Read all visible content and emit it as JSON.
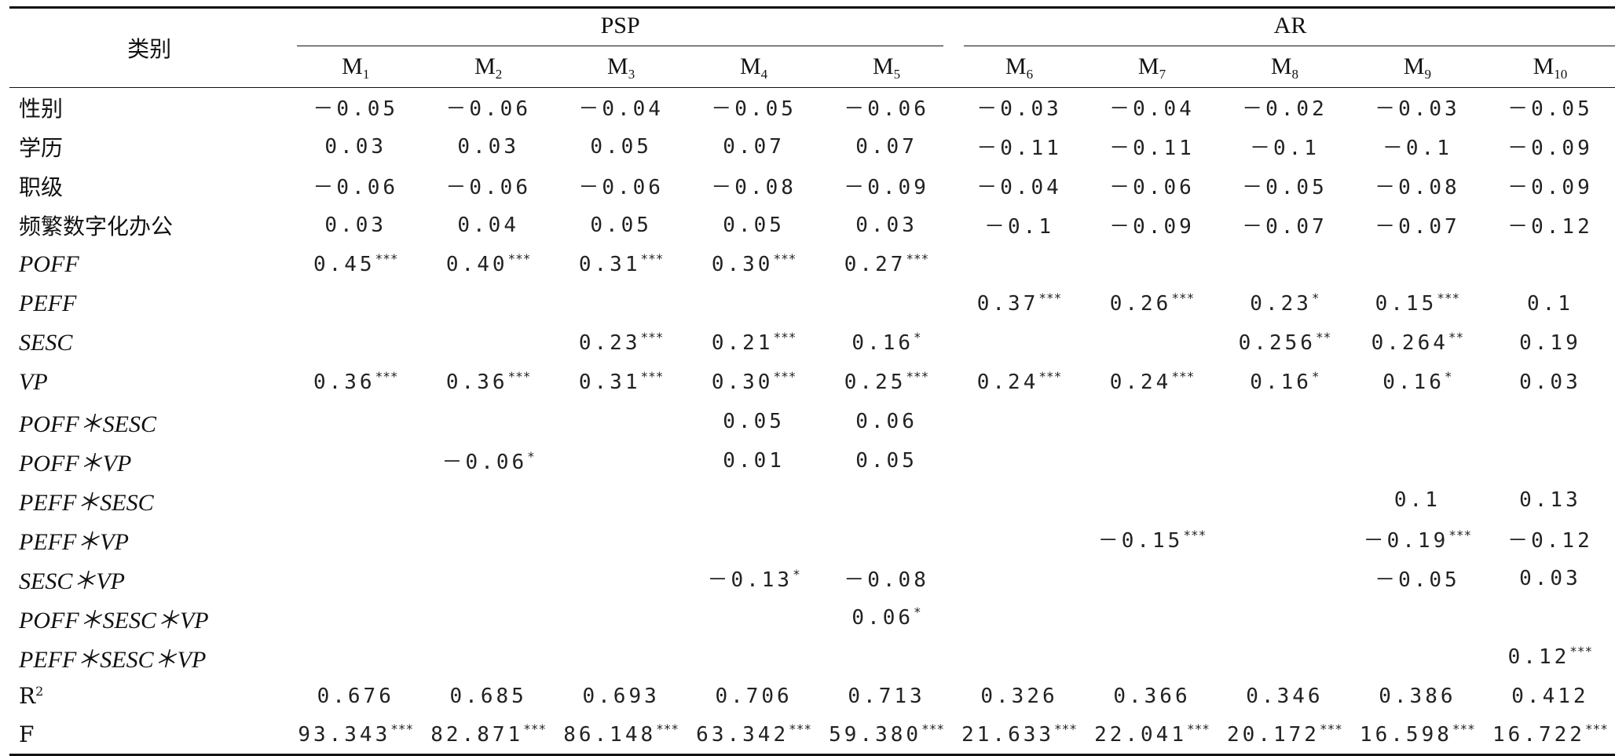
{
  "header": {
    "corner": "类别",
    "groups": [
      {
        "label": "PSP",
        "models": [
          [
            "M",
            "1"
          ],
          [
            "M",
            "2"
          ],
          [
            "M",
            "3"
          ],
          [
            "M",
            "4"
          ],
          [
            "M",
            "5"
          ]
        ]
      },
      {
        "label": "AR",
        "models": [
          [
            "M",
            "6"
          ],
          [
            "M",
            "7"
          ],
          [
            "M",
            "8"
          ],
          [
            "M",
            "9"
          ],
          [
            "M",
            "10"
          ]
        ]
      }
    ]
  },
  "rows": [
    {
      "label": "性别",
      "italic": false,
      "cells": [
        [
          "－0.05",
          ""
        ],
        [
          "－0.06",
          ""
        ],
        [
          "－0.04",
          ""
        ],
        [
          "－0.05",
          ""
        ],
        [
          "－0.06",
          ""
        ],
        [
          "－0.03",
          ""
        ],
        [
          "－0.04",
          ""
        ],
        [
          "－0.02",
          ""
        ],
        [
          "－0.03",
          ""
        ],
        [
          "－0.05",
          ""
        ]
      ]
    },
    {
      "label": "学历",
      "italic": false,
      "cells": [
        [
          "0.03",
          ""
        ],
        [
          "0.03",
          ""
        ],
        [
          "0.05",
          ""
        ],
        [
          "0.07",
          ""
        ],
        [
          "0.07",
          ""
        ],
        [
          "－0.11",
          ""
        ],
        [
          "－0.11",
          ""
        ],
        [
          "－0.1",
          ""
        ],
        [
          "－0.1",
          ""
        ],
        [
          "－0.09",
          ""
        ]
      ]
    },
    {
      "label": "职级",
      "italic": false,
      "cells": [
        [
          "－0.06",
          ""
        ],
        [
          "－0.06",
          ""
        ],
        [
          "－0.06",
          ""
        ],
        [
          "－0.08",
          ""
        ],
        [
          "－0.09",
          ""
        ],
        [
          "－0.04",
          ""
        ],
        [
          "－0.06",
          ""
        ],
        [
          "－0.05",
          ""
        ],
        [
          "－0.08",
          ""
        ],
        [
          "－0.09",
          ""
        ]
      ]
    },
    {
      "label": "频繁数字化办公",
      "italic": false,
      "cells": [
        [
          "0.03",
          ""
        ],
        [
          "0.04",
          ""
        ],
        [
          "0.05",
          ""
        ],
        [
          "0.05",
          ""
        ],
        [
          "0.03",
          ""
        ],
        [
          "－0.1",
          ""
        ],
        [
          "－0.09",
          ""
        ],
        [
          "－0.07",
          ""
        ],
        [
          "－0.07",
          ""
        ],
        [
          "－0.12",
          ""
        ]
      ]
    },
    {
      "label": "POFF",
      "italic": true,
      "cells": [
        [
          "0.45",
          "***"
        ],
        [
          "0.40",
          "***"
        ],
        [
          "0.31",
          "***"
        ],
        [
          "0.30",
          "***"
        ],
        [
          "0.27",
          "***"
        ],
        [
          "",
          ""
        ],
        [
          "",
          ""
        ],
        [
          "",
          ""
        ],
        [
          "",
          ""
        ],
        [
          "",
          ""
        ]
      ]
    },
    {
      "label": "PEFF",
      "italic": true,
      "cells": [
        [
          "",
          ""
        ],
        [
          "",
          ""
        ],
        [
          "",
          ""
        ],
        [
          "",
          ""
        ],
        [
          "",
          ""
        ],
        [
          "0.37",
          "***"
        ],
        [
          "0.26",
          "***"
        ],
        [
          "0.23",
          "*"
        ],
        [
          "0.15",
          "***"
        ],
        [
          "0.1",
          ""
        ]
      ]
    },
    {
      "label": "SESC",
      "italic": true,
      "cells": [
        [
          "",
          ""
        ],
        [
          "",
          ""
        ],
        [
          "0.23",
          "***"
        ],
        [
          "0.21",
          "***"
        ],
        [
          "0.16",
          "*"
        ],
        [
          "",
          ""
        ],
        [
          "",
          ""
        ],
        [
          "0.256",
          "**"
        ],
        [
          "0.264",
          "**"
        ],
        [
          "0.19",
          ""
        ]
      ]
    },
    {
      "label": "VP",
      "italic": true,
      "cells": [
        [
          "0.36",
          "***"
        ],
        [
          "0.36",
          "***"
        ],
        [
          "0.31",
          "***"
        ],
        [
          "0.30",
          "***"
        ],
        [
          "0.25",
          "***"
        ],
        [
          "0.24",
          "***"
        ],
        [
          "0.24",
          "***"
        ],
        [
          "0.16",
          "*"
        ],
        [
          "0.16",
          "*"
        ],
        [
          "0.03",
          ""
        ]
      ]
    },
    {
      "label": "POFF＊SESC",
      "italic": true,
      "cells": [
        [
          "",
          ""
        ],
        [
          "",
          ""
        ],
        [
          "",
          ""
        ],
        [
          "0.05",
          ""
        ],
        [
          "0.06",
          ""
        ],
        [
          "",
          ""
        ],
        [
          "",
          ""
        ],
        [
          "",
          ""
        ],
        [
          "",
          ""
        ],
        [
          "",
          ""
        ]
      ]
    },
    {
      "label": "POFF＊VP",
      "italic": true,
      "cells": [
        [
          "",
          ""
        ],
        [
          "－0.06",
          "*"
        ],
        [
          "",
          ""
        ],
        [
          "0.01",
          ""
        ],
        [
          "0.05",
          ""
        ],
        [
          "",
          ""
        ],
        [
          "",
          ""
        ],
        [
          "",
          ""
        ],
        [
          "",
          ""
        ],
        [
          "",
          ""
        ]
      ]
    },
    {
      "label": "PEFF＊SESC",
      "italic": true,
      "cells": [
        [
          "",
          ""
        ],
        [
          "",
          ""
        ],
        [
          "",
          ""
        ],
        [
          "",
          ""
        ],
        [
          "",
          ""
        ],
        [
          "",
          ""
        ],
        [
          "",
          ""
        ],
        [
          "",
          ""
        ],
        [
          "0.1",
          ""
        ],
        [
          "0.13",
          ""
        ]
      ]
    },
    {
      "label": "PEFF＊VP",
      "italic": true,
      "cells": [
        [
          "",
          ""
        ],
        [
          "",
          ""
        ],
        [
          "",
          ""
        ],
        [
          "",
          ""
        ],
        [
          "",
          ""
        ],
        [
          "",
          ""
        ],
        [
          "－0.15",
          "***"
        ],
        [
          "",
          ""
        ],
        [
          "－0.19",
          "***"
        ],
        [
          "－0.12",
          ""
        ]
      ]
    },
    {
      "label": "SESC＊VP",
      "italic": true,
      "cells": [
        [
          "",
          ""
        ],
        [
          "",
          ""
        ],
        [
          "",
          ""
        ],
        [
          "－0.13",
          "*"
        ],
        [
          "－0.08",
          ""
        ],
        [
          "",
          ""
        ],
        [
          "",
          ""
        ],
        [
          "",
          ""
        ],
        [
          "－0.05",
          ""
        ],
        [
          "0.03",
          ""
        ]
      ]
    },
    {
      "label": "POFF＊SESC＊VP",
      "italic": true,
      "cells": [
        [
          "",
          ""
        ],
        [
          "",
          ""
        ],
        [
          "",
          ""
        ],
        [
          "",
          ""
        ],
        [
          "0.06",
          "*"
        ],
        [
          "",
          ""
        ],
        [
          "",
          ""
        ],
        [
          "",
          ""
        ],
        [
          "",
          ""
        ],
        [
          "",
          ""
        ]
      ]
    },
    {
      "label": "PEFF＊SESC＊VP",
      "italic": true,
      "cells": [
        [
          "",
          ""
        ],
        [
          "",
          ""
        ],
        [
          "",
          ""
        ],
        [
          "",
          ""
        ],
        [
          "",
          ""
        ],
        [
          "",
          ""
        ],
        [
          "",
          ""
        ],
        [
          "",
          ""
        ],
        [
          "",
          ""
        ],
        [
          "0.12",
          "***"
        ]
      ]
    },
    {
      "label": "R",
      "label_sup": "2",
      "italic": false,
      "cells": [
        [
          "0.676",
          ""
        ],
        [
          "0.685",
          ""
        ],
        [
          "0.693",
          ""
        ],
        [
          "0.706",
          ""
        ],
        [
          "0.713",
          ""
        ],
        [
          "0.326",
          ""
        ],
        [
          "0.366",
          ""
        ],
        [
          "0.346",
          ""
        ],
        [
          "0.386",
          ""
        ],
        [
          "0.412",
          ""
        ]
      ]
    },
    {
      "label": "F",
      "italic": false,
      "cells": [
        [
          "93.343",
          "***"
        ],
        [
          "82.871",
          "***"
        ],
        [
          "86.148",
          "***"
        ],
        [
          "63.342",
          "***"
        ],
        [
          "59.380",
          "***"
        ],
        [
          "21.633",
          "***"
        ],
        [
          "22.041",
          "***"
        ],
        [
          "20.172",
          "***"
        ],
        [
          "16.598",
          "***"
        ],
        [
          "16.722",
          "***"
        ]
      ]
    }
  ]
}
